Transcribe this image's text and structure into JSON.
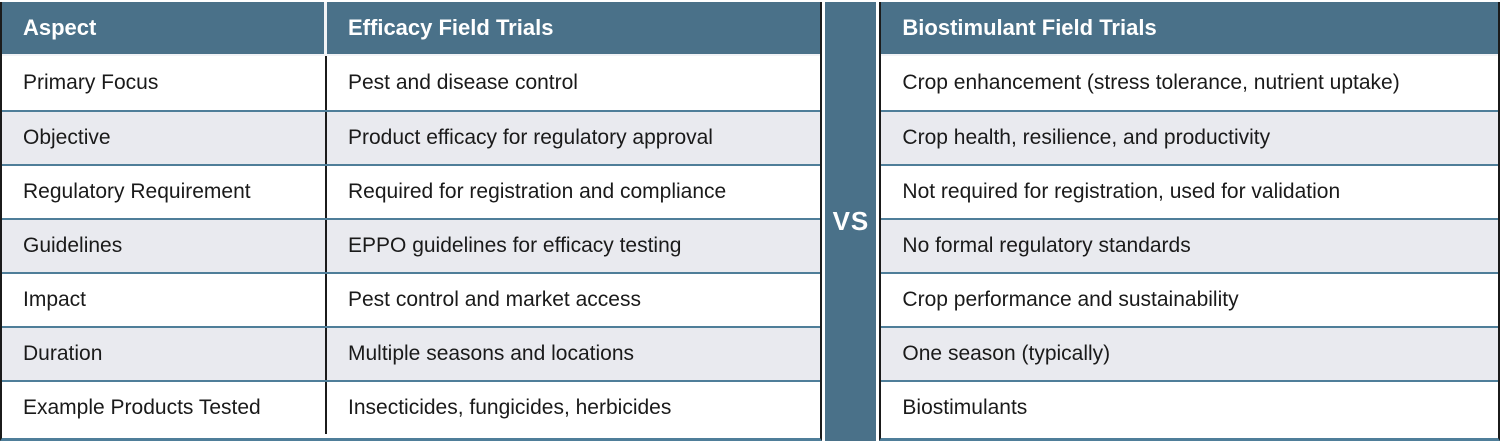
{
  "colors": {
    "header_bg": "#4A7189",
    "header_text": "#FFFFFF",
    "row_alt_bg": "#E9EAEF",
    "row_bg": "#FFFFFF",
    "row_divider": "#4F7E99",
    "column_divider": "#1B1B1B",
    "body_text": "#1A1A1A",
    "vs_bg": "#4A7189",
    "vs_text": "#FFFFFF"
  },
  "table": {
    "headers": {
      "aspect": "Aspect",
      "efficacy": "Efficacy Field Trials",
      "biostimulant": "Biostimulant Field Trials"
    },
    "vs_label": "VS",
    "rows": [
      {
        "aspect": "Primary Focus",
        "efficacy": "Pest and disease control",
        "biostimulant": "Crop enhancement (stress tolerance, nutrient uptake)"
      },
      {
        "aspect": "Objective",
        "efficacy": "Product efficacy for regulatory approval",
        "biostimulant": "Crop health, resilience, and productivity"
      },
      {
        "aspect": "Regulatory Requirement",
        "efficacy": "Required for registration and compliance",
        "biostimulant": "Not required for registration, used for validation"
      },
      {
        "aspect": "Guidelines",
        "efficacy": "EPPO guidelines for efficacy testing",
        "biostimulant": "No formal regulatory standards"
      },
      {
        "aspect": "Impact",
        "efficacy": "Pest control and market access",
        "biostimulant": "Crop performance and sustainability"
      },
      {
        "aspect": "Duration",
        "efficacy": "Multiple seasons and locations",
        "biostimulant": "One season (typically)"
      },
      {
        "aspect": "Example Products Tested",
        "efficacy": "Insecticides, fungicides, herbicides",
        "biostimulant": "Biostimulants"
      }
    ]
  }
}
